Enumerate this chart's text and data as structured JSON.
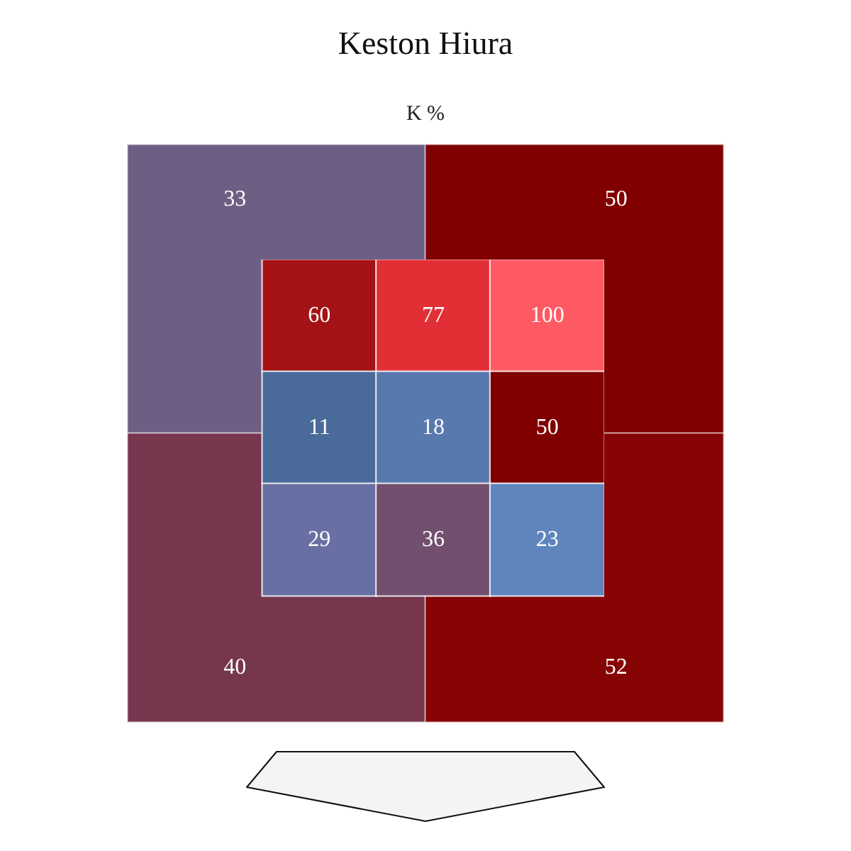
{
  "chart_data": [
    {
      "type": "heatmap",
      "title": "Keston Hiura",
      "subtitle": "K %",
      "categories": [
        null,
        null
      ],
      "y_categories": [
        null,
        null
      ],
      "cells": [
        [
          33,
          50
        ],
        [
          40,
          52
        ]
      ],
      "colors": [
        [
          "#6d5e84",
          "#800000"
        ],
        [
          "#76364e",
          "#860404"
        ]
      ],
      "data_labels": true
    },
    {
      "type": "heatmap",
      "categories": [
        null,
        null,
        null
      ],
      "y_categories": [
        null,
        null,
        null
      ],
      "cells": [
        [
          60,
          77,
          100
        ],
        [
          11,
          18,
          50
        ],
        [
          29,
          36,
          23
        ]
      ],
      "colors": [
        [
          "#a51216",
          "#e22f36",
          "#ff5a64"
        ],
        [
          "#4a6a99",
          "#5879ae",
          "#800000"
        ],
        [
          "#686fa2",
          "#734f6f",
          "#6085bd"
        ]
      ],
      "data_labels": true
    }
  ]
}
